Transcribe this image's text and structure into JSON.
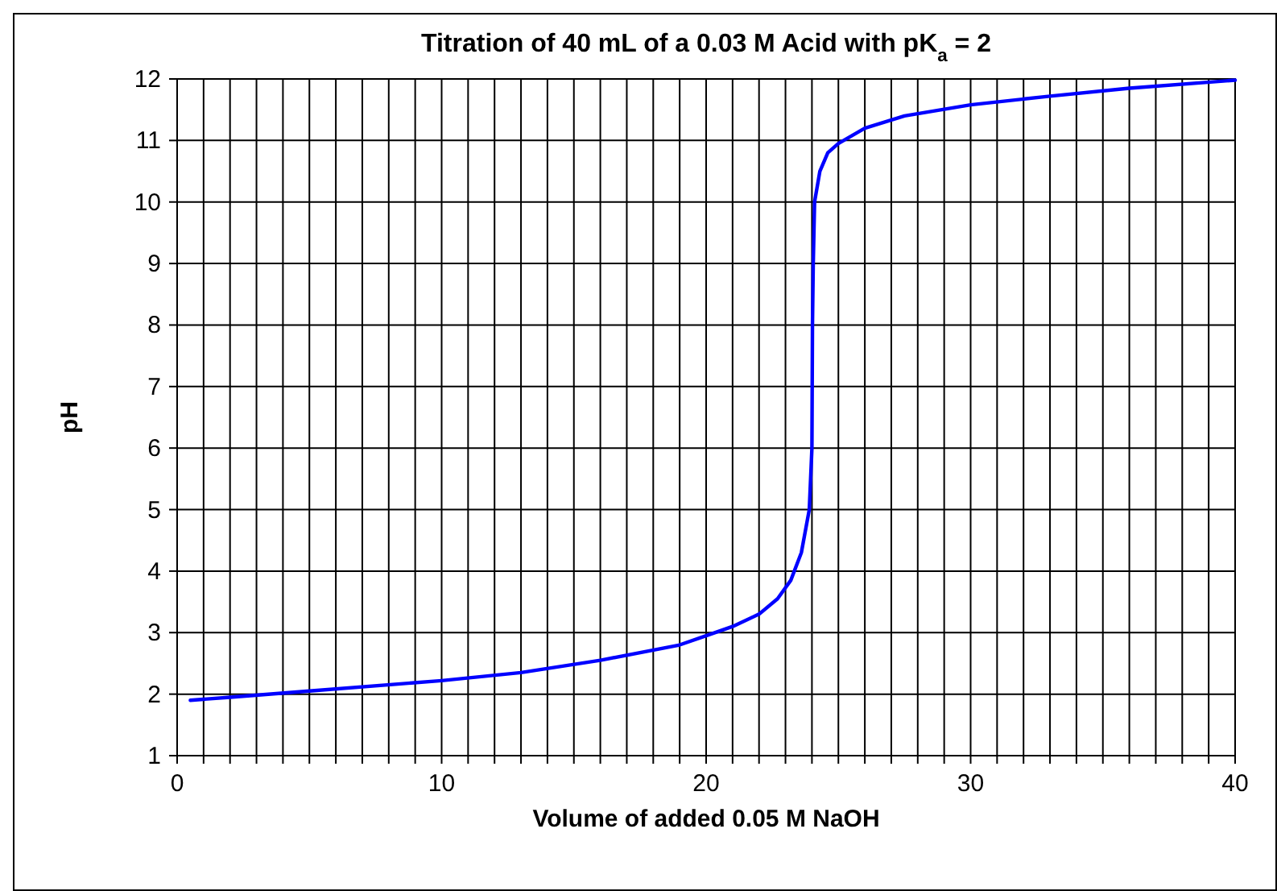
{
  "chart_data": {
    "type": "line",
    "title": "Titration of 40 mL of a 0.03 M Acid with pK$_{a}$ = 2",
    "xlabel": "Volume of added 0.05 M NaOH",
    "ylabel": "pH",
    "x": [
      0.5,
      2,
      5,
      10,
      13,
      16,
      19,
      20,
      21,
      22,
      22.7,
      23.2,
      23.6,
      23.9,
      24,
      24.02,
      24.05,
      24.1,
      24.3,
      24.6,
      25,
      26,
      27.5,
      30,
      33,
      36,
      40
    ],
    "series": [
      {
        "color": "#0000ff",
        "values": [
          1.9,
          1.95,
          2.05,
          2.22,
          2.35,
          2.55,
          2.8,
          2.95,
          3.1,
          3.3,
          3.55,
          3.85,
          4.3,
          5,
          6,
          8,
          9,
          10,
          10.5,
          10.8,
          10.95,
          11.2,
          11.4,
          11.58,
          11.72,
          11.85,
          11.98
        ]
      }
    ],
    "xlim": [
      0,
      40
    ],
    "ylim": [
      1,
      12
    ],
    "xticks": [
      0,
      {
        "value": 1,
        "label": null
      },
      {
        "value": 2,
        "label": null
      },
      {
        "value": 3,
        "label": null
      },
      {
        "value": 4,
        "label": null
      },
      {
        "value": 5,
        "label": null
      },
      {
        "value": 6,
        "label": null
      },
      {
        "value": 7,
        "label": null
      },
      {
        "value": 8,
        "label": null
      },
      {
        "value": 9,
        "label": null
      },
      10,
      {
        "value": 11,
        "label": null
      },
      {
        "value": 12,
        "label": null
      },
      {
        "value": 13,
        "label": null
      },
      {
        "value": 14,
        "label": null
      },
      {
        "value": 15,
        "label": null
      },
      {
        "value": 16,
        "label": null
      },
      {
        "value": 17,
        "label": null
      },
      {
        "value": 18,
        "label": null
      },
      {
        "value": 19,
        "label": null
      },
      20,
      {
        "value": 21,
        "label": null
      },
      {
        "value": 22,
        "label": null
      },
      {
        "value": 23,
        "label": null
      },
      {
        "value": 24,
        "label": null
      },
      {
        "value": 25,
        "label": null
      },
      {
        "value": 26,
        "label": null
      },
      {
        "value": 27,
        "label": null
      },
      {
        "value": 28,
        "label": null
      },
      {
        "value": 29,
        "label": null
      },
      30,
      {
        "value": 31,
        "label": null
      },
      {
        "value": 32,
        "label": null
      },
      {
        "value": 33,
        "label": null
      },
      {
        "value": 34,
        "label": null
      },
      {
        "value": 35,
        "label": null
      },
      {
        "value": 36,
        "label": null
      },
      {
        "value": 37,
        "label": null
      },
      {
        "value": 38,
        "label": null
      },
      {
        "value": 39,
        "label": null
      },
      40
    ],
    "yticks": [
      1,
      2,
      3,
      4,
      5,
      6,
      7,
      8,
      9,
      10,
      11,
      12
    ],
    "grid": true,
    "marker": "none",
    "line_style": "solid"
  }
}
